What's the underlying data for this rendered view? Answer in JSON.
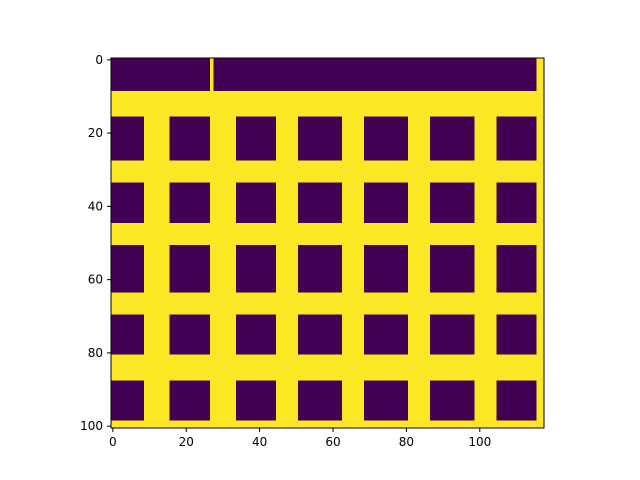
{
  "chart_data": {
    "type": "heatmap",
    "title": "",
    "xlabel": "",
    "ylabel": "",
    "xlim": [
      -0.5,
      117.5
    ],
    "ylim": [
      100.5,
      -0.5
    ],
    "x_ticks": [
      0,
      20,
      40,
      60,
      80,
      100
    ],
    "y_ticks": [
      0,
      20,
      40,
      60,
      80,
      100
    ],
    "grid": false,
    "colormap": "viridis",
    "values_present": [
      0,
      1
    ],
    "colors": {
      "low": "#440154",
      "high": "#fde725"
    },
    "pattern": {
      "block_columns": [
        [
          0,
          8
        ],
        [
          16,
          26
        ],
        [
          34,
          44
        ],
        [
          51,
          62
        ],
        [
          69,
          80
        ],
        [
          87,
          98
        ],
        [
          105,
          115
        ]
      ],
      "top_band_segments": [
        [
          0,
          26
        ],
        [
          28,
          44
        ],
        [
          45,
          68
        ],
        [
          69,
          98
        ],
        [
          99,
          115
        ]
      ],
      "top_band_rows": [
        0,
        8
      ],
      "block_rows": [
        [
          16,
          27
        ],
        [
          34,
          44
        ],
        [
          51,
          63
        ],
        [
          70,
          80
        ],
        [
          88,
          98
        ]
      ]
    }
  }
}
